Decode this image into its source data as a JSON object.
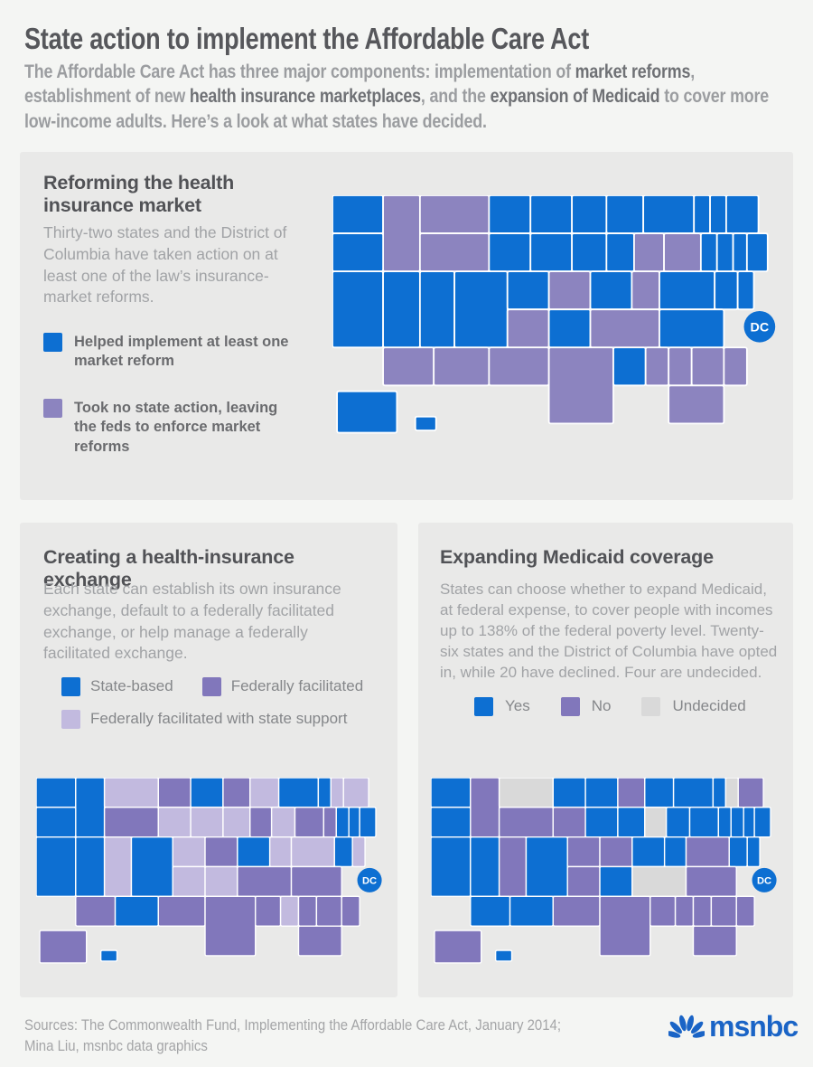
{
  "header": {
    "title": "State action to implement the Affordable Care Act",
    "subtitle_parts": [
      {
        "text": "The Affordable Care Act has three major components: implementation of ",
        "bold": false
      },
      {
        "text": "market reforms",
        "bold": true
      },
      {
        "text": ", establishment of new ",
        "bold": false
      },
      {
        "text": "health insurance marketplaces",
        "bold": true
      },
      {
        "text": ", and the ",
        "bold": false
      },
      {
        "text": "expansion of Medicaid",
        "bold": true
      },
      {
        "text": " to cover more low-income adults. Here’s a look at what states have decided.",
        "bold": false
      }
    ]
  },
  "colors": {
    "blue": "#0d6fd2",
    "purple": "#8c84bf",
    "purple_medium": "#8177bb",
    "purple_light": "#c2badf",
    "undecided_gray": "#d9d9d9",
    "panel_bg": "#e9e9e8",
    "page_bg": "#f4f5f3",
    "logo_blue": "#1a64c6"
  },
  "dc_badge": "DC",
  "panels": [
    {
      "title": "Reforming the health insurance market",
      "body": "Thirty-two states and the District of Columbia have taken action on at least one of the law’s insurance-market reforms."
    },
    {
      "title": "Creating a health-insurance exchange",
      "body": "Each state can establish its own insurance exchange, default to a federally facilitated exchange, or help manage a federally facilitated exchange."
    },
    {
      "title": "Expanding Medicaid coverage",
      "body": "States can choose whether to expand Medicaid, at federal expense, to cover people with incomes up to 138% of the federal poverty level. Twenty-six states and the District of Columbia have opted in, while 20 have declined. Four are undecided."
    }
  ],
  "footer": {
    "sources_line1": "Sources: The Commonwealth Fund, Implementing the Affordable Care Act, January 2014;",
    "sources_line2": "Mina Liu, msnbc data graphics",
    "logo_text": "msnbc"
  },
  "chart_data": [
    {
      "type": "choropleth",
      "title": "Reforming the health insurance market",
      "legend_position": "left",
      "categories": [
        {
          "key": "helped_implement",
          "label": "Helped implement at least one market reform",
          "color": "#0d6fd2",
          "states": [
            "WA",
            "OR",
            "CA",
            "NV",
            "UT",
            "CO",
            "ND",
            "SD",
            "NE",
            "MN",
            "IA",
            "WI",
            "MI",
            "IL",
            "IN",
            "KY",
            "AR",
            "LA",
            "ME",
            "VT",
            "NH",
            "MA",
            "RI",
            "CT",
            "NY",
            "NJ",
            "DE",
            "MD",
            "VA",
            "NC",
            "AK",
            "HI",
            "DC"
          ]
        },
        {
          "key": "no_state_action",
          "label": "Took no state action, leaving the feds to enforce market reforms",
          "color": "#8c84bf",
          "states": [
            "MT",
            "ID",
            "WY",
            "AZ",
            "NM",
            "TX",
            "OK",
            "KS",
            "MO",
            "OH",
            "PA",
            "WV",
            "TN",
            "MS",
            "AL",
            "GA",
            "SC",
            "FL"
          ]
        }
      ]
    },
    {
      "type": "choropleth",
      "title": "Creating a health-insurance exchange",
      "legend_position": "top",
      "categories": [
        {
          "key": "state_based",
          "label": "State-based",
          "color": "#0d6fd2",
          "states": [
            "WA",
            "OR",
            "CA",
            "NV",
            "ID",
            "CO",
            "NM",
            "MN",
            "KY",
            "NY",
            "VT",
            "MA",
            "RI",
            "CT",
            "MD",
            "HI",
            "DC"
          ]
        },
        {
          "key": "federally_facilitated",
          "label": "Federally facilitated",
          "color": "#8177bb",
          "states": [
            "AK",
            "ND",
            "WY",
            "AZ",
            "TX",
            "OK",
            "MO",
            "LA",
            "WI",
            "IN",
            "TN",
            "NC",
            "SC",
            "GA",
            "AL",
            "FL",
            "PA",
            "NJ"
          ]
        },
        {
          "key": "federally_facilitated_state_support",
          "label": "Federally facilitated with state support",
          "color": "#c2badf",
          "states": [
            "MT",
            "SD",
            "NE",
            "KS",
            "IA",
            "IL",
            "OH",
            "WV",
            "VA",
            "AR",
            "MS",
            "MI",
            "UT",
            "NH",
            "ME",
            "DE"
          ]
        }
      ]
    },
    {
      "type": "choropleth",
      "title": "Expanding Medicaid coverage",
      "legend_position": "top",
      "categories": [
        {
          "key": "yes",
          "label": "Yes",
          "color": "#0d6fd2",
          "states": [
            "WA",
            "OR",
            "CA",
            "NV",
            "AZ",
            "CO",
            "NM",
            "ND",
            "MN",
            "IA",
            "IL",
            "MI",
            "OH",
            "KY",
            "WV",
            "AR",
            "PA",
            "NY",
            "VT",
            "MA",
            "RI",
            "CT",
            "NJ",
            "DE",
            "MD",
            "HI",
            "DC"
          ]
        },
        {
          "key": "no",
          "label": "No",
          "color": "#8177bb",
          "states": [
            "ID",
            "WY",
            "UT",
            "SD",
            "NE",
            "KS",
            "MO",
            "OK",
            "TX",
            "LA",
            "MS",
            "AL",
            "GA",
            "FL",
            "SC",
            "NC",
            "VA",
            "WI",
            "ME",
            "AK"
          ]
        },
        {
          "key": "undecided",
          "label": "Undecided",
          "color": "#d9d9d9",
          "states": [
            "MT",
            "IN",
            "TN",
            "NH"
          ]
        }
      ]
    }
  ]
}
